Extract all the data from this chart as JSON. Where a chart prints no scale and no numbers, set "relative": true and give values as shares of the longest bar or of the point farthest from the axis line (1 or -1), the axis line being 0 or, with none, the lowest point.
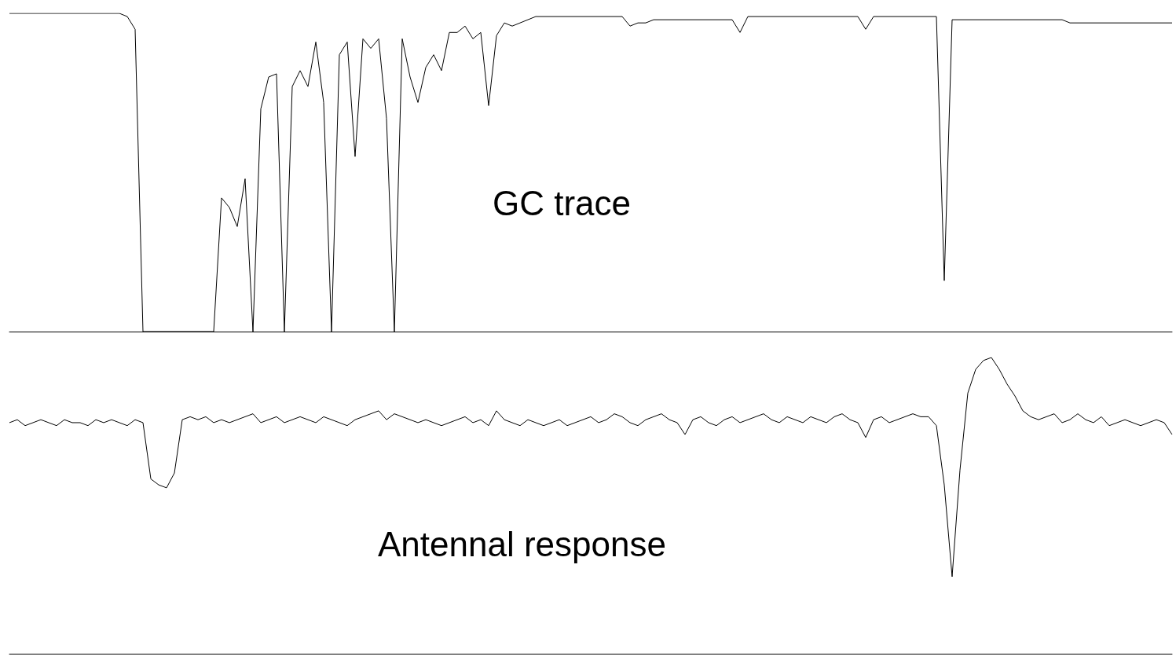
{
  "chart_data": [
    {
      "type": "line",
      "relative": true,
      "annotations": [
        "GC trace"
      ],
      "marker": "none",
      "line_style": "solid",
      "categories": [
        null,
        null,
        null,
        null,
        null,
        null,
        null,
        null,
        null,
        null,
        null,
        null,
        null,
        null,
        null,
        null,
        null,
        null,
        null,
        null,
        null,
        null,
        null,
        null,
        null,
        null,
        null,
        null,
        null,
        null,
        null,
        null,
        null,
        null,
        null,
        null,
        null,
        null,
        null,
        null,
        null,
        null,
        null,
        null,
        null,
        null,
        null,
        null,
        null,
        null,
        null,
        null,
        null,
        null,
        null,
        null,
        null,
        null,
        null,
        null,
        null,
        null,
        null,
        null,
        null,
        null,
        null,
        null,
        null,
        null,
        null,
        null,
        null,
        null,
        null,
        null,
        null,
        null,
        null,
        null,
        null,
        null,
        null,
        null,
        null,
        null,
        null,
        null,
        null,
        null,
        null,
        null,
        null,
        null,
        null,
        null,
        null,
        null,
        null,
        null,
        null,
        null,
        null,
        null,
        null,
        null,
        null,
        null,
        null,
        null,
        null,
        null,
        null,
        null,
        null,
        null,
        null,
        null,
        null,
        null,
        null,
        null,
        null,
        null,
        null,
        null,
        null,
        null,
        null,
        null,
        null,
        null,
        null,
        null,
        null,
        null,
        null,
        null,
        null,
        null,
        null,
        null,
        null,
        null,
        null,
        null,
        null,
        null,
        null
      ],
      "series": [
        {
          "color": "#000000",
          "values": [
            1,
            1,
            1,
            1,
            1,
            1,
            1,
            1,
            1,
            1,
            1,
            1,
            1,
            1,
            1,
            0.99,
            0.95,
            0,
            0,
            0,
            0,
            0,
            0,
            0,
            0,
            0,
            0,
            0.42,
            0.39,
            0.33,
            0.48,
            0,
            0.7,
            0.8,
            0.81,
            0,
            0.77,
            0.82,
            0.77,
            0.91,
            0.72,
            0,
            0.87,
            0.91,
            0.55,
            0.92,
            0.89,
            0.92,
            0.67,
            0,
            0.92,
            0.8,
            0.72,
            0.83,
            0.87,
            0.82,
            0.94,
            0.94,
            0.96,
            0.92,
            0.94,
            0.71,
            0.93,
            0.97,
            0.96,
            0.97,
            0.98,
            0.99,
            0.99,
            0.99,
            0.99,
            0.99,
            0.99,
            0.99,
            0.99,
            0.99,
            0.99,
            0.99,
            0.99,
            0.96,
            0.97,
            0.97,
            0.98,
            0.98,
            0.98,
            0.98,
            0.98,
            0.98,
            0.98,
            0.98,
            0.98,
            0.98,
            0.98,
            0.94,
            0.99,
            0.99,
            0.99,
            0.99,
            0.99,
            0.99,
            0.99,
            0.99,
            0.99,
            0.99,
            0.99,
            0.99,
            0.99,
            0.99,
            0.99,
            0.95,
            0.99,
            0.99,
            0.99,
            0.99,
            0.99,
            0.99,
            0.99,
            0.99,
            0.99,
            0.16,
            0.98,
            0.98,
            0.98,
            0.98,
            0.98,
            0.98,
            0.98,
            0.98,
            0.98,
            0.98,
            0.98,
            0.98,
            0.98,
            0.98,
            0.98,
            0.97,
            0.97,
            0.97,
            0.97,
            0.97,
            0.97,
            0.97,
            0.97,
            0.97,
            0.97,
            0.97,
            0.97,
            0.97,
            0.97
          ]
        }
      ]
    },
    {
      "type": "line",
      "relative": true,
      "annotations": [
        "Antennal response"
      ],
      "marker": "none",
      "line_style": "solid",
      "categories": [
        null,
        null,
        null,
        null,
        null,
        null,
        null,
        null,
        null,
        null,
        null,
        null,
        null,
        null,
        null,
        null,
        null,
        null,
        null,
        null,
        null,
        null,
        null,
        null,
        null,
        null,
        null,
        null,
        null,
        null,
        null,
        null,
        null,
        null,
        null,
        null,
        null,
        null,
        null,
        null,
        null,
        null,
        null,
        null,
        null,
        null,
        null,
        null,
        null,
        null,
        null,
        null,
        null,
        null,
        null,
        null,
        null,
        null,
        null,
        null,
        null,
        null,
        null,
        null,
        null,
        null,
        null,
        null,
        null,
        null,
        null,
        null,
        null,
        null,
        null,
        null,
        null,
        null,
        null,
        null,
        null,
        null,
        null,
        null,
        null,
        null,
        null,
        null,
        null,
        null,
        null,
        null,
        null,
        null,
        null,
        null,
        null,
        null,
        null,
        null,
        null,
        null,
        null,
        null,
        null,
        null,
        null,
        null,
        null,
        null,
        null,
        null,
        null,
        null,
        null,
        null,
        null,
        null,
        null,
        null,
        null,
        null,
        null,
        null,
        null,
        null,
        null,
        null,
        null,
        null,
        null,
        null,
        null,
        null,
        null,
        null,
        null,
        null,
        null,
        null,
        null,
        null,
        null,
        null,
        null,
        null,
        null,
        null,
        null
      ],
      "series": [
        {
          "color": "#000000",
          "values": [
            0.78,
            0.79,
            0.77,
            0.78,
            0.79,
            0.78,
            0.77,
            0.79,
            0.78,
            0.78,
            0.77,
            0.79,
            0.78,
            0.79,
            0.78,
            0.77,
            0.79,
            0.78,
            0.59,
            0.57,
            0.56,
            0.61,
            0.79,
            0.8,
            0.79,
            0.8,
            0.78,
            0.79,
            0.78,
            0.79,
            0.8,
            0.81,
            0.78,
            0.79,
            0.8,
            0.78,
            0.79,
            0.8,
            0.79,
            0.78,
            0.8,
            0.79,
            0.78,
            0.77,
            0.79,
            0.8,
            0.81,
            0.82,
            0.79,
            0.81,
            0.8,
            0.79,
            0.78,
            0.79,
            0.78,
            0.77,
            0.78,
            0.79,
            0.8,
            0.78,
            0.79,
            0.77,
            0.82,
            0.79,
            0.78,
            0.77,
            0.79,
            0.78,
            0.77,
            0.78,
            0.79,
            0.77,
            0.78,
            0.79,
            0.8,
            0.78,
            0.79,
            0.81,
            0.8,
            0.78,
            0.77,
            0.79,
            0.8,
            0.81,
            0.79,
            0.78,
            0.74,
            0.79,
            0.8,
            0.78,
            0.77,
            0.79,
            0.8,
            0.78,
            0.79,
            0.8,
            0.81,
            0.79,
            0.78,
            0.8,
            0.79,
            0.78,
            0.8,
            0.79,
            0.78,
            0.8,
            0.81,
            0.79,
            0.78,
            0.73,
            0.79,
            0.8,
            0.78,
            0.79,
            0.8,
            0.81,
            0.8,
            0.8,
            0.77,
            0.57,
            0.26,
            0.62,
            0.88,
            0.96,
            0.99,
            1,
            0.96,
            0.91,
            0.87,
            0.82,
            0.8,
            0.79,
            0.8,
            0.81,
            0.78,
            0.79,
            0.81,
            0.79,
            0.78,
            0.8,
            0.77,
            0.78,
            0.79,
            0.78,
            0.77,
            0.78,
            0.79,
            0.78,
            0.74
          ]
        }
      ]
    }
  ]
}
